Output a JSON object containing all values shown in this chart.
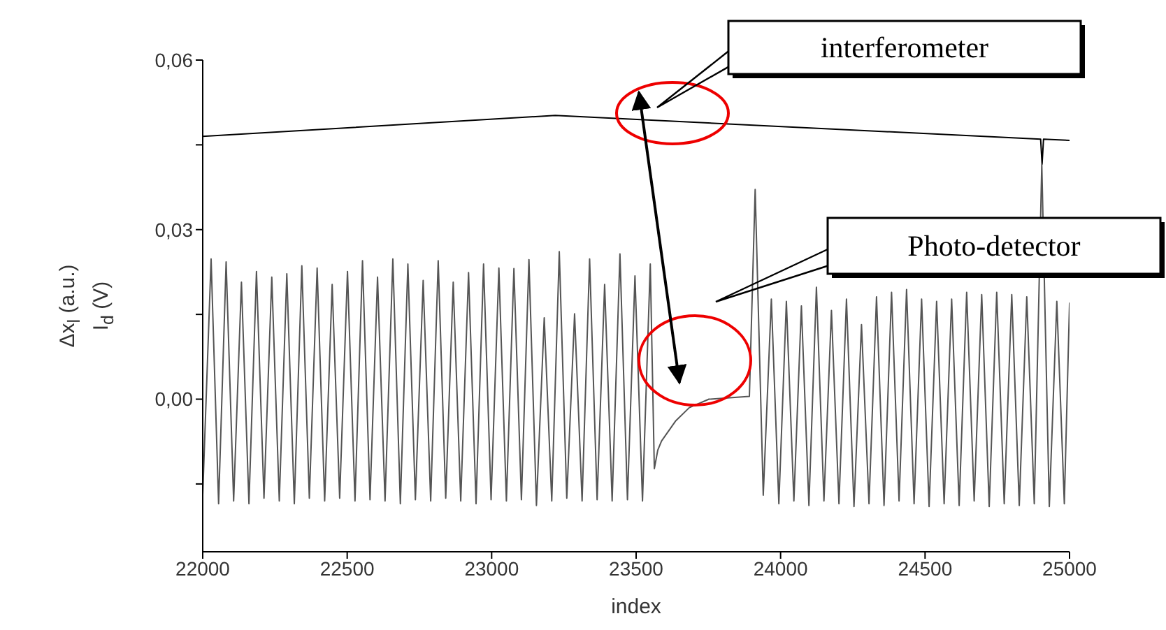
{
  "chart_data": {
    "type": "line",
    "xlabel": "index",
    "ylabel": "Δx$_{l}$ (a.u.)\nI$_{d}$ (V)",
    "xlim": [
      22000,
      25000
    ],
    "xticks": [
      22000,
      22500,
      23000,
      23500,
      24000,
      24500,
      25000
    ],
    "ylim": [
      -0.027,
      0.06
    ],
    "yticks": [
      {
        "value": -0.015,
        "label": null
      },
      {
        "value": 0,
        "label": "0,00"
      },
      {
        "value": 0.015,
        "label": null
      },
      {
        "value": 0.03,
        "label": "0,03"
      },
      {
        "value": 0.045,
        "label": null
      },
      {
        "value": 0.06,
        "label": "0,06"
      }
    ],
    "grid": false,
    "legend": false,
    "annotations": [
      "interferometer",
      "Photo-detector"
    ],
    "series": [
      {
        "color": "#000000",
        "x": [
          22000,
          23220,
          24900,
          24905,
          24910,
          25000
        ],
        "values": [
          0.0465,
          0.0502,
          0.046,
          0.0416,
          0.046,
          0.0458
        ]
      },
      {
        "color": "#555555",
        "x": [
          22000,
          22029,
          22055,
          22081,
          22107,
          22134,
          22160,
          22186,
          22212,
          22239,
          22265,
          22291,
          22317,
          22343,
          22369,
          22396,
          22422,
          22448,
          22474,
          22501,
          22527,
          22553,
          22579,
          22605,
          22631,
          22658,
          22684,
          22710,
          22736,
          22763,
          22789,
          22815,
          22841,
          22867,
          22893,
          22920,
          22946,
          22972,
          22998,
          23025,
          23051,
          23077,
          23103,
          23129,
          23155,
          23182,
          23208,
          23234,
          23260,
          23287,
          23313,
          23339,
          23365,
          23391,
          23417,
          23444,
          23470,
          23496,
          23522,
          23549,
          23563,
          23575,
          23588,
          23636,
          23684,
          23752,
          23892,
          23912,
          23940,
          23968,
          23994,
          24020,
          24046,
          24072,
          24098,
          24124,
          24150,
          24176,
          24202,
          24228,
          24254,
          24280,
          24306,
          24332,
          24358,
          24384,
          24410,
          24436,
          24462,
          24488,
          24514,
          24540,
          24566,
          24592,
          24618,
          24644,
          24670,
          24696,
          24722,
          24748,
          24774,
          24800,
          24826,
          24852,
          24878,
          24904,
          24930,
          24956,
          24982,
          25000
        ],
        "values": [
          -0.017,
          0.0248,
          -0.0185,
          0.0243,
          -0.018,
          0.0207,
          -0.0185,
          0.0226,
          -0.0175,
          0.0216,
          -0.018,
          0.0222,
          -0.0185,
          0.0236,
          -0.0175,
          0.0232,
          -0.018,
          0.0203,
          -0.0175,
          0.0226,
          -0.018,
          0.0245,
          -0.0178,
          0.0216,
          -0.018,
          0.0248,
          -0.0185,
          0.0239,
          -0.0178,
          0.021,
          -0.018,
          0.0245,
          -0.0175,
          0.0207,
          -0.018,
          0.0224,
          -0.0185,
          0.0239,
          -0.0178,
          0.0232,
          -0.018,
          0.0231,
          -0.0178,
          0.0247,
          -0.0188,
          0.0144,
          -0.018,
          0.0261,
          -0.0175,
          0.0151,
          -0.018,
          0.0248,
          -0.0178,
          0.0203,
          -0.018,
          0.0257,
          -0.0178,
          0.0218,
          -0.018,
          0.0239,
          -0.0123,
          -0.009,
          -0.0074,
          -0.0039,
          -0.0015,
          0.0,
          0.0005,
          0.0371,
          -0.017,
          0.0177,
          -0.0185,
          0.0173,
          -0.018,
          0.0165,
          -0.0188,
          0.0198,
          -0.018,
          0.0157,
          -0.0185,
          0.0177,
          -0.019,
          0.0132,
          -0.0185,
          0.0181,
          -0.0188,
          0.0189,
          -0.018,
          0.0194,
          -0.0185,
          0.0177,
          -0.019,
          0.0173,
          -0.0185,
          0.0177,
          -0.0188,
          0.0189,
          -0.018,
          0.0185,
          -0.019,
          0.0189,
          -0.0185,
          0.0185,
          -0.0188,
          0.0181,
          -0.0185,
          0.0416,
          -0.019,
          0.0173,
          -0.0185,
          0.017
        ]
      }
    ]
  }
}
